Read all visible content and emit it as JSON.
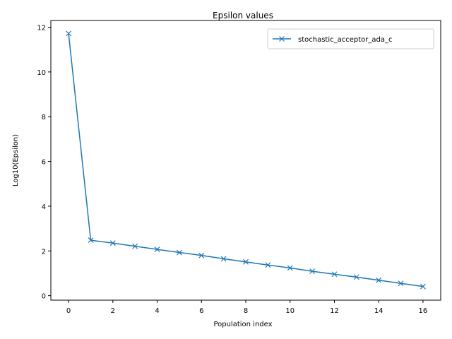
{
  "chart_data": {
    "type": "line",
    "title": "Epsilon values",
    "xlabel": "Population index",
    "ylabel": "Log10(Epsilon)",
    "xlim": [
      -0.8,
      16.8
    ],
    "ylim": [
      -0.2,
      12.3
    ],
    "xticks": [
      0,
      2,
      4,
      6,
      8,
      10,
      12,
      14,
      16
    ],
    "yticks": [
      0,
      2,
      4,
      6,
      8,
      10,
      12
    ],
    "legend_position": "top-right",
    "grid": false,
    "series": [
      {
        "name": "stochastic_acceptor_ada_c",
        "color": "#1f77b4",
        "marker": "x",
        "x": [
          0,
          1,
          2,
          3,
          4,
          5,
          6,
          7,
          8,
          9,
          10,
          11,
          12,
          13,
          14,
          15,
          16
        ],
        "y": [
          11.72,
          2.48,
          2.35,
          2.21,
          2.07,
          1.93,
          1.8,
          1.65,
          1.51,
          1.37,
          1.24,
          1.09,
          0.96,
          0.83,
          0.69,
          0.55,
          0.41
        ]
      }
    ]
  }
}
